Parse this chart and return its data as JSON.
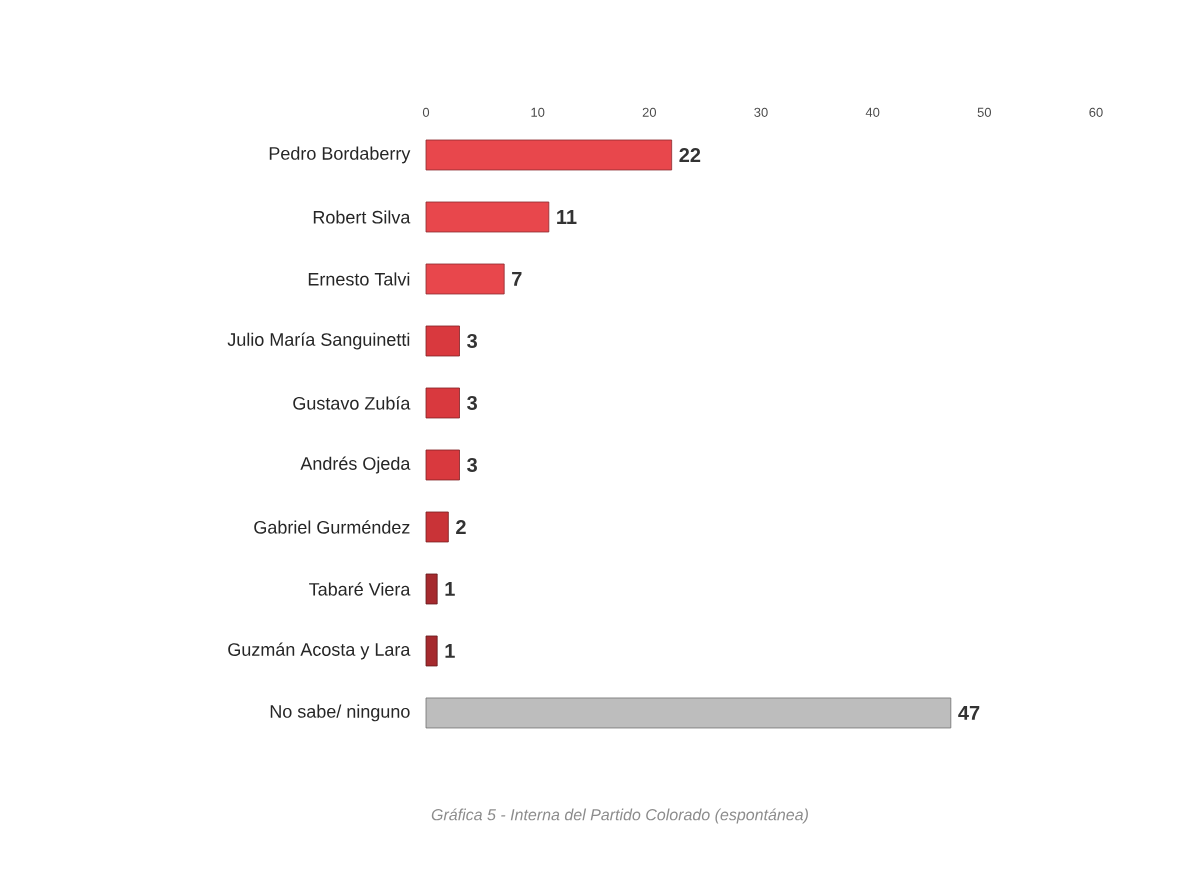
{
  "chart_data": {
    "type": "bar",
    "orientation": "horizontal",
    "categories": [
      "Pedro Bordaberry",
      "Robert Silva",
      "Ernesto Talvi",
      "Julio María Sanguinetti",
      "Gustavo Zubía",
      "Andrés Ojeda",
      "Gabriel Gurméndez",
      "Tabaré Viera",
      "Guzmán Acosta y Lara",
      "No sabe/ ninguno"
    ],
    "values": [
      22,
      11,
      7,
      3,
      3,
      3,
      2,
      1,
      1,
      47
    ],
    "colors": [
      "#e8474c",
      "#e8474c",
      "#e8474c",
      "#d9393e",
      "#d9393e",
      "#d9393e",
      "#c93337",
      "#a52a2e",
      "#a52a2e",
      "#bdbdbd"
    ],
    "xlim": [
      0,
      60
    ],
    "xticks": [
      0,
      10,
      20,
      30,
      40,
      50,
      60
    ],
    "data_labels": true,
    "annotations": [
      "Gráfica 5 - Interna del Partido Colorado (espontánea)"
    ]
  }
}
